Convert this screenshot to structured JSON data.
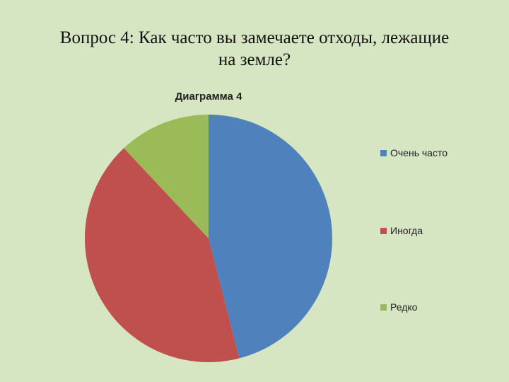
{
  "slide": {
    "title_line1": "Вопрос 4: Как часто вы замечаете отходы, лежащие",
    "title_line2": "на земле?"
  },
  "chart_data": {
    "type": "pie",
    "title": "Диаграмма 4",
    "categories": [
      "Очень часто",
      "Иногда",
      "Редко"
    ],
    "values": [
      46,
      42,
      12
    ],
    "colors": [
      "#4f81bd",
      "#c0504d",
      "#9bbb59"
    ],
    "legend_position": "right",
    "start_angle_deg": 0,
    "direction": "clockwise"
  }
}
